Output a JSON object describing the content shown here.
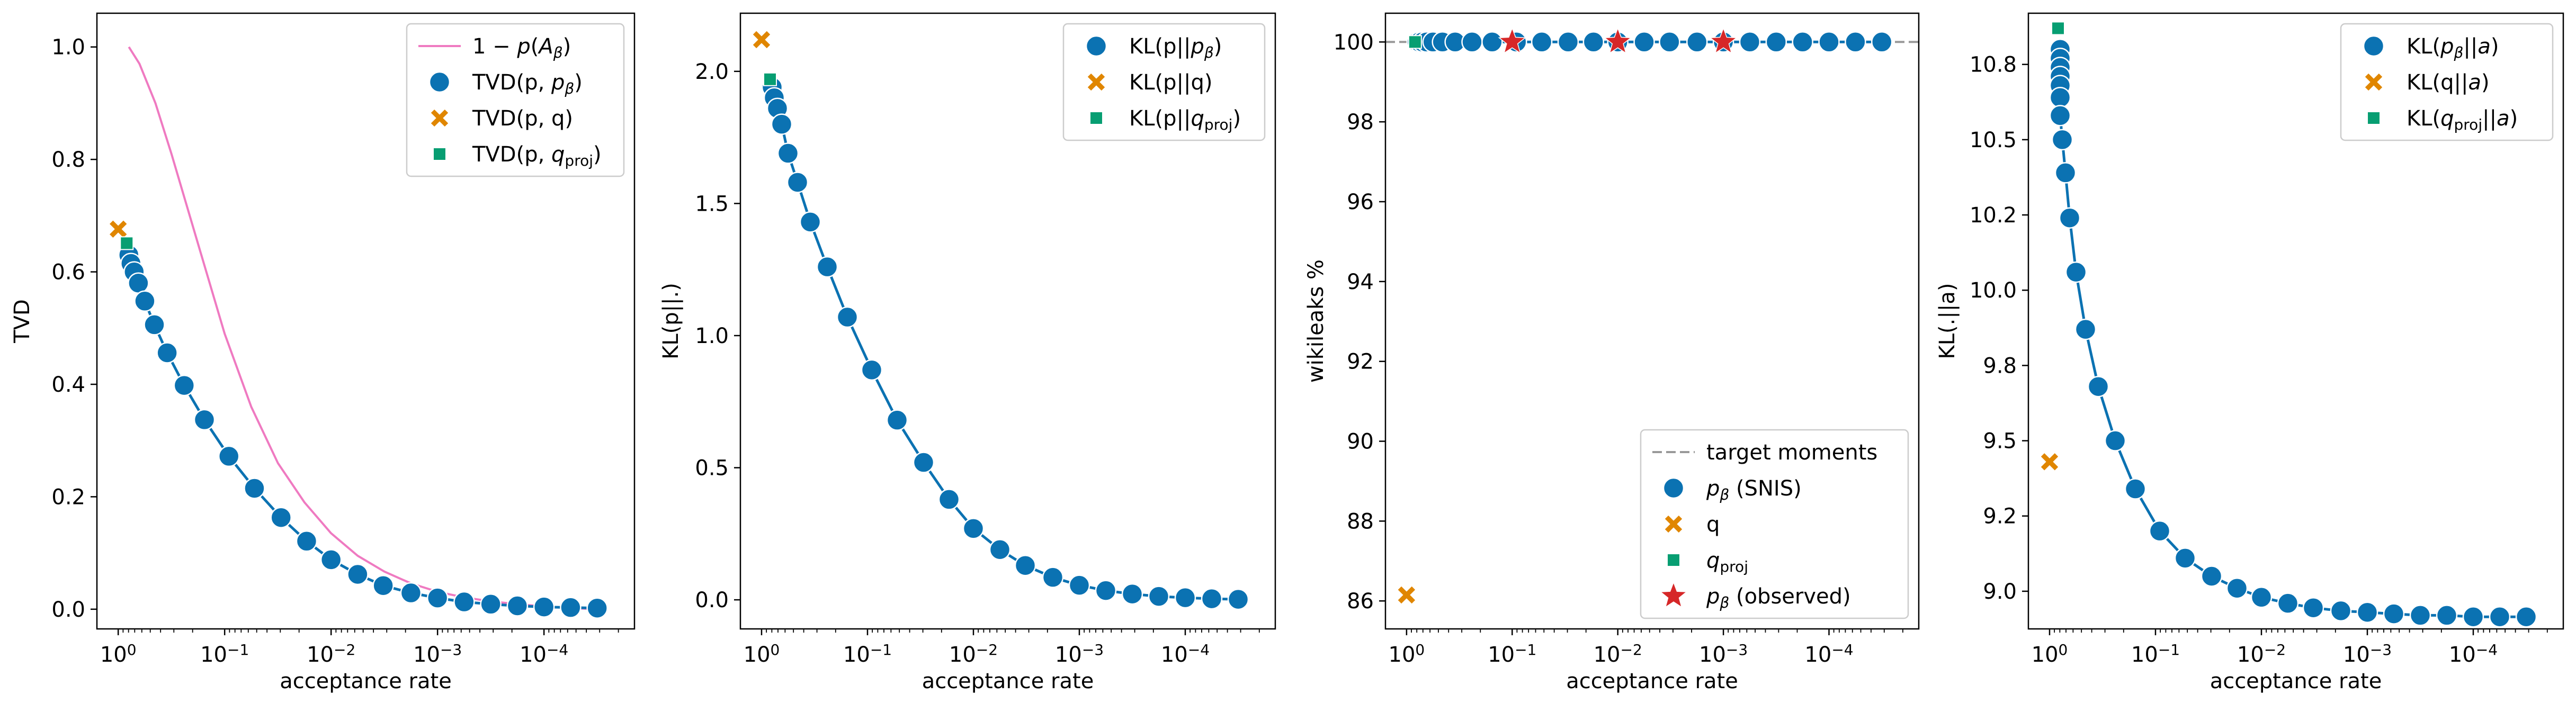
{
  "colors": {
    "blue": "#0b72b2",
    "orange": "#e08600",
    "green": "#079e72",
    "pink": "#ef7ac1",
    "red": "#d62728",
    "dashed": "#999999"
  },
  "chart_data": [
    {
      "type": "scatter",
      "xscale": "log-reversed",
      "xlabel": "acceptance rate",
      "ylabel": "TVD",
      "ylim": [
        -0.035,
        1.06
      ],
      "yticks": [
        "0.0",
        "0.2",
        "0.4",
        "0.6",
        "0.8",
        "1.0"
      ],
      "ytick_values": [
        0.0,
        0.2,
        0.4,
        0.6,
        0.8,
        1.0
      ],
      "xticks": [
        "10^0",
        "10^-1",
        "10^-2",
        "10^-3",
        "10^-4"
      ],
      "xtick_values": [
        0,
        -1,
        -2,
        -3,
        -4
      ],
      "legend_position": "upper right",
      "legend": [
        {
          "label": "1 − p(A_β)",
          "mark": "line",
          "color": "pink"
        },
        {
          "label": "TVD(p, p_β)",
          "mark": "circle",
          "color": "blue"
        },
        {
          "label": "TVD(p, q)",
          "mark": "x",
          "color": "orange"
        },
        {
          "label": "TVD(p, q_proj)",
          "mark": "square",
          "color": "green"
        }
      ],
      "series": [
        {
          "name": "1 − p(A_β)",
          "kind": "line",
          "color": "pink",
          "log_x": [
            -0.1,
            -0.2,
            -0.35,
            -0.5,
            -0.75,
            -1.0,
            -1.25,
            -1.5,
            -1.75,
            -2.0,
            -2.25,
            -2.5,
            -2.75,
            -3.0,
            -3.25,
            -3.5,
            -3.75,
            -4.0,
            -4.25,
            -4.5
          ],
          "y": [
            1.0,
            0.97,
            0.9,
            0.81,
            0.65,
            0.49,
            0.36,
            0.26,
            0.19,
            0.135,
            0.095,
            0.067,
            0.046,
            0.031,
            0.021,
            0.014,
            0.009,
            0.005,
            0.002,
            0.0
          ]
        },
        {
          "name": "TVD(p, p_β)",
          "kind": "circles",
          "color": "blue",
          "connected": true,
          "log_x": [
            -0.1,
            -0.12,
            -0.15,
            -0.19,
            -0.25,
            -0.34,
            -0.46,
            -0.62,
            -0.81,
            -1.04,
            -1.28,
            -1.53,
            -1.77,
            -2.0,
            -2.25,
            -2.49,
            -2.75,
            -3.0,
            -3.25,
            -3.5,
            -3.75,
            -4.0,
            -4.25,
            -4.5
          ],
          "y": [
            0.63,
            0.615,
            0.6,
            0.58,
            0.548,
            0.506,
            0.456,
            0.398,
            0.337,
            0.272,
            0.215,
            0.163,
            0.121,
            0.088,
            0.062,
            0.042,
            0.029,
            0.02,
            0.013,
            0.009,
            0.006,
            0.004,
            0.003,
            0.002
          ]
        },
        {
          "name": "TVD(p, q)",
          "kind": "x",
          "color": "orange",
          "log_x": [
            0.0
          ],
          "y": [
            0.676
          ]
        },
        {
          "name": "TVD(p, q_proj)",
          "kind": "square",
          "color": "green",
          "log_x": [
            -0.08
          ],
          "y": [
            0.651
          ]
        }
      ]
    },
    {
      "type": "scatter",
      "xscale": "log-reversed",
      "xlabel": "acceptance rate",
      "ylabel": "KL(p||.)",
      "ylim": [
        -0.11,
        2.22
      ],
      "yticks": [
        "0.0",
        "0.5",
        "1.0",
        "1.5",
        "2.0"
      ],
      "ytick_values": [
        0.0,
        0.5,
        1.0,
        1.5,
        2.0
      ],
      "xticks": [
        "10^0",
        "10^-1",
        "10^-2",
        "10^-3",
        "10^-4"
      ],
      "xtick_values": [
        0,
        -1,
        -2,
        -3,
        -4
      ],
      "legend_position": "upper right",
      "legend": [
        {
          "label": "KL(p||p_β)",
          "mark": "circle",
          "color": "blue"
        },
        {
          "label": "KL(p||q)",
          "mark": "x",
          "color": "orange"
        },
        {
          "label": "KL(p||q_proj)",
          "mark": "square",
          "color": "green"
        }
      ],
      "series": [
        {
          "name": "KL(p||p_β)",
          "kind": "circles",
          "color": "blue",
          "connected": true,
          "log_x": [
            -0.1,
            -0.12,
            -0.15,
            -0.19,
            -0.25,
            -0.34,
            -0.46,
            -0.62,
            -0.81,
            -1.04,
            -1.28,
            -1.53,
            -1.77,
            -2.0,
            -2.25,
            -2.49,
            -2.75,
            -3.0,
            -3.25,
            -3.5,
            -3.75,
            -4.0,
            -4.25,
            -4.5
          ],
          "y": [
            1.94,
            1.9,
            1.86,
            1.8,
            1.69,
            1.58,
            1.43,
            1.26,
            1.07,
            0.87,
            0.68,
            0.52,
            0.38,
            0.27,
            0.19,
            0.13,
            0.085,
            0.055,
            0.035,
            0.022,
            0.013,
            0.008,
            0.004,
            0.002
          ]
        },
        {
          "name": "KL(p||q)",
          "kind": "x",
          "color": "orange",
          "log_x": [
            0.0
          ],
          "y": [
            2.12
          ]
        },
        {
          "name": "KL(p||q_proj)",
          "kind": "square",
          "color": "green",
          "log_x": [
            -0.08
          ],
          "y": [
            1.97
          ]
        }
      ]
    },
    {
      "type": "scatter",
      "xscale": "log-reversed",
      "xlabel": "acceptance rate",
      "ylabel": "wikileaks %",
      "ylim": [
        85.3,
        100.72
      ],
      "yticks": [
        "86",
        "88",
        "90",
        "92",
        "94",
        "96",
        "98",
        "100"
      ],
      "ytick_values": [
        86,
        88,
        90,
        92,
        94,
        96,
        98,
        100
      ],
      "xticks": [
        "10^0",
        "10^-1",
        "10^-2",
        "10^-3",
        "10^-4"
      ],
      "xtick_values": [
        0,
        -1,
        -2,
        -3,
        -4
      ],
      "legend_position": "lower right",
      "reference_line": {
        "label": "target moments",
        "y": 100.0
      },
      "legend": [
        {
          "label": "target moments",
          "mark": "dashed",
          "color": "dashed"
        },
        {
          "label": "p_β (SNIS)",
          "mark": "circle",
          "color": "blue"
        },
        {
          "label": "q",
          "mark": "x",
          "color": "orange"
        },
        {
          "label": "q_proj",
          "mark": "square",
          "color": "green"
        },
        {
          "label": "p_β (observed)",
          "mark": "star",
          "color": "red"
        }
      ],
      "series": [
        {
          "name": "p_β (SNIS)",
          "kind": "circles",
          "color": "blue",
          "connected": true,
          "log_x": [
            -0.1,
            -0.12,
            -0.15,
            -0.19,
            -0.25,
            -0.34,
            -0.46,
            -0.62,
            -0.81,
            -1.04,
            -1.28,
            -1.53,
            -1.77,
            -2.0,
            -2.25,
            -2.49,
            -2.75,
            -3.0,
            -3.25,
            -3.5,
            -3.75,
            -4.0,
            -4.25,
            -4.5
          ],
          "y": [
            100,
            100,
            100,
            100,
            100,
            100,
            100,
            100,
            100,
            100,
            100,
            100,
            100,
            100,
            100,
            100,
            100,
            100,
            100,
            100,
            100,
            100,
            100,
            100
          ]
        },
        {
          "name": "q",
          "kind": "x",
          "color": "orange",
          "log_x": [
            0.0
          ],
          "y": [
            86.15
          ]
        },
        {
          "name": "q_proj",
          "kind": "square",
          "color": "green",
          "log_x": [
            -0.08
          ],
          "y": [
            100.0
          ]
        },
        {
          "name": "p_β (observed)",
          "kind": "star",
          "color": "red",
          "log_x": [
            -1.0,
            -2.0,
            -3.0
          ],
          "y": [
            100.0,
            100.0,
            100.0
          ]
        }
      ]
    },
    {
      "type": "scatter",
      "xscale": "log-reversed",
      "xlabel": "acceptance rate",
      "ylabel": "KL(.||a)",
      "ylim": [
        8.875,
        10.92
      ],
      "yticks": [
        "9.0",
        "9.2",
        "9.5",
        "9.8",
        "10.0",
        "10.2",
        "10.5",
        "10.8"
      ],
      "ytick_values": [
        9.0,
        9.25,
        9.5,
        9.75,
        10.0,
        10.25,
        10.5,
        10.75
      ],
      "xticks": [
        "10^0",
        "10^-1",
        "10^-2",
        "10^-3",
        "10^-4"
      ],
      "xtick_values": [
        0,
        -1,
        -2,
        -3,
        -4
      ],
      "legend_position": "upper right",
      "legend": [
        {
          "label": "KL(p_β||a)",
          "mark": "circle",
          "color": "blue"
        },
        {
          "label": "KL(q||a)",
          "mark": "x",
          "color": "orange"
        },
        {
          "label": "KL(q_proj||a)",
          "mark": "square",
          "color": "green"
        }
      ],
      "series": [
        {
          "name": "KL(p_β||a)",
          "kind": "circles",
          "color": "blue",
          "connected": true,
          "log_x": [
            -0.1,
            -0.1,
            -0.1,
            -0.1,
            -0.1,
            -0.1,
            -0.1,
            -0.12,
            -0.15,
            -0.19,
            -0.25,
            -0.34,
            -0.46,
            -0.62,
            -0.81,
            -1.04,
            -1.28,
            -1.53,
            -1.77,
            -2.0,
            -2.25,
            -2.49,
            -2.75,
            -3.0,
            -3.25,
            -3.5,
            -3.75,
            -4.0,
            -4.25,
            -4.5
          ],
          "y": [
            10.8,
            10.77,
            10.74,
            10.71,
            10.68,
            10.64,
            10.58,
            10.5,
            10.39,
            10.24,
            10.06,
            9.87,
            9.68,
            9.5,
            9.34,
            9.2,
            9.11,
            9.05,
            9.01,
            8.98,
            8.96,
            8.945,
            8.935,
            8.93,
            8.925,
            8.92,
            8.92,
            8.915,
            8.915,
            8.915
          ]
        },
        {
          "name": "KL(q||a)",
          "kind": "x",
          "color": "orange",
          "log_x": [
            0.0
          ],
          "y": [
            9.43
          ]
        },
        {
          "name": "KL(q_proj||a)",
          "kind": "square",
          "color": "green",
          "log_x": [
            -0.08
          ],
          "y": [
            10.87
          ]
        }
      ]
    }
  ]
}
